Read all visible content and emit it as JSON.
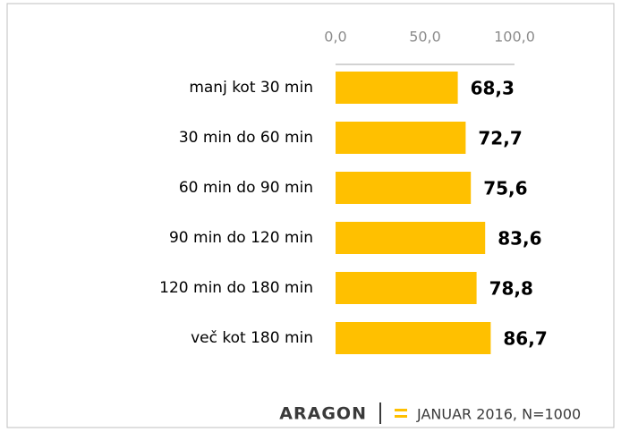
{
  "chart_data": {
    "type": "bar",
    "orientation": "horizontal",
    "categories": [
      "manj kot 30 min",
      "30 min do 60 min",
      "60 min do 90 min",
      "90 min do 120 min",
      "120 min do 180 min",
      "več kot 180 min"
    ],
    "values": [
      68.3,
      72.7,
      75.6,
      83.6,
      78.8,
      86.7
    ],
    "value_labels": [
      "68,3",
      "72,7",
      "75,6",
      "83,6",
      "78,8",
      "86,7"
    ],
    "color": "#ffc000",
    "xlim": [
      0,
      100
    ],
    "xticks": [
      {
        "value": 0,
        "label": "0,0"
      },
      {
        "value": 50,
        "label": "50,0"
      },
      {
        "value": 100,
        "label": "100,0"
      }
    ],
    "brand": "ARAGON",
    "note": "JANUAR 2016, N=1000"
  }
}
